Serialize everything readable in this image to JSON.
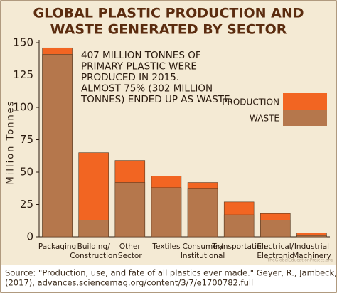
{
  "chart_data": {
    "type": "bar",
    "title": [
      "GLOBAL PLASTIC PRODUCTION AND",
      "WASTE GENERATED BY SECTOR"
    ],
    "ylabel": "Million Tonnes",
    "categories": [
      [
        "Packaging"
      ],
      [
        "Building/",
        "Construction"
      ],
      [
        "Other",
        "Sector"
      ],
      [
        "Textiles"
      ],
      [
        "Consumer/",
        "Institutional"
      ],
      [
        "Transportation"
      ],
      [
        "Electrical/",
        "Electronic"
      ],
      [
        "Industrial",
        "Machinery"
      ]
    ],
    "series": [
      {
        "name": "PRODUCTION",
        "color": "#f26522",
        "values": [
          146,
          65,
          59,
          47,
          42,
          27,
          18,
          3
        ]
      },
      {
        "name": "WASTE",
        "color": "#b5774c",
        "values": [
          141,
          13,
          42,
          38,
          37,
          17,
          13,
          1
        ]
      }
    ],
    "ylim": [
      0,
      150
    ],
    "yticks": [
      0,
      25,
      50,
      75,
      100,
      125,
      150
    ],
    "annotation": [
      "407 MILLION TONNES OF",
      "PRIMARY PLASTIC WERE",
      "PRODUCED IN 2015.",
      "ALMOST 75% (302 MILLION",
      "TONNES) ENDED UP AS WASTE."
    ],
    "source": [
      "Source: \"Production, use, and fate of all plastics ever made.\" Geyer, R., Jambeck, J. R., & Law, K. L.",
      "(2017), advances.sciencemag.org/content/3/7/e1700782.full"
    ],
    "watermark": "TheGlobalEducationProject.org"
  }
}
